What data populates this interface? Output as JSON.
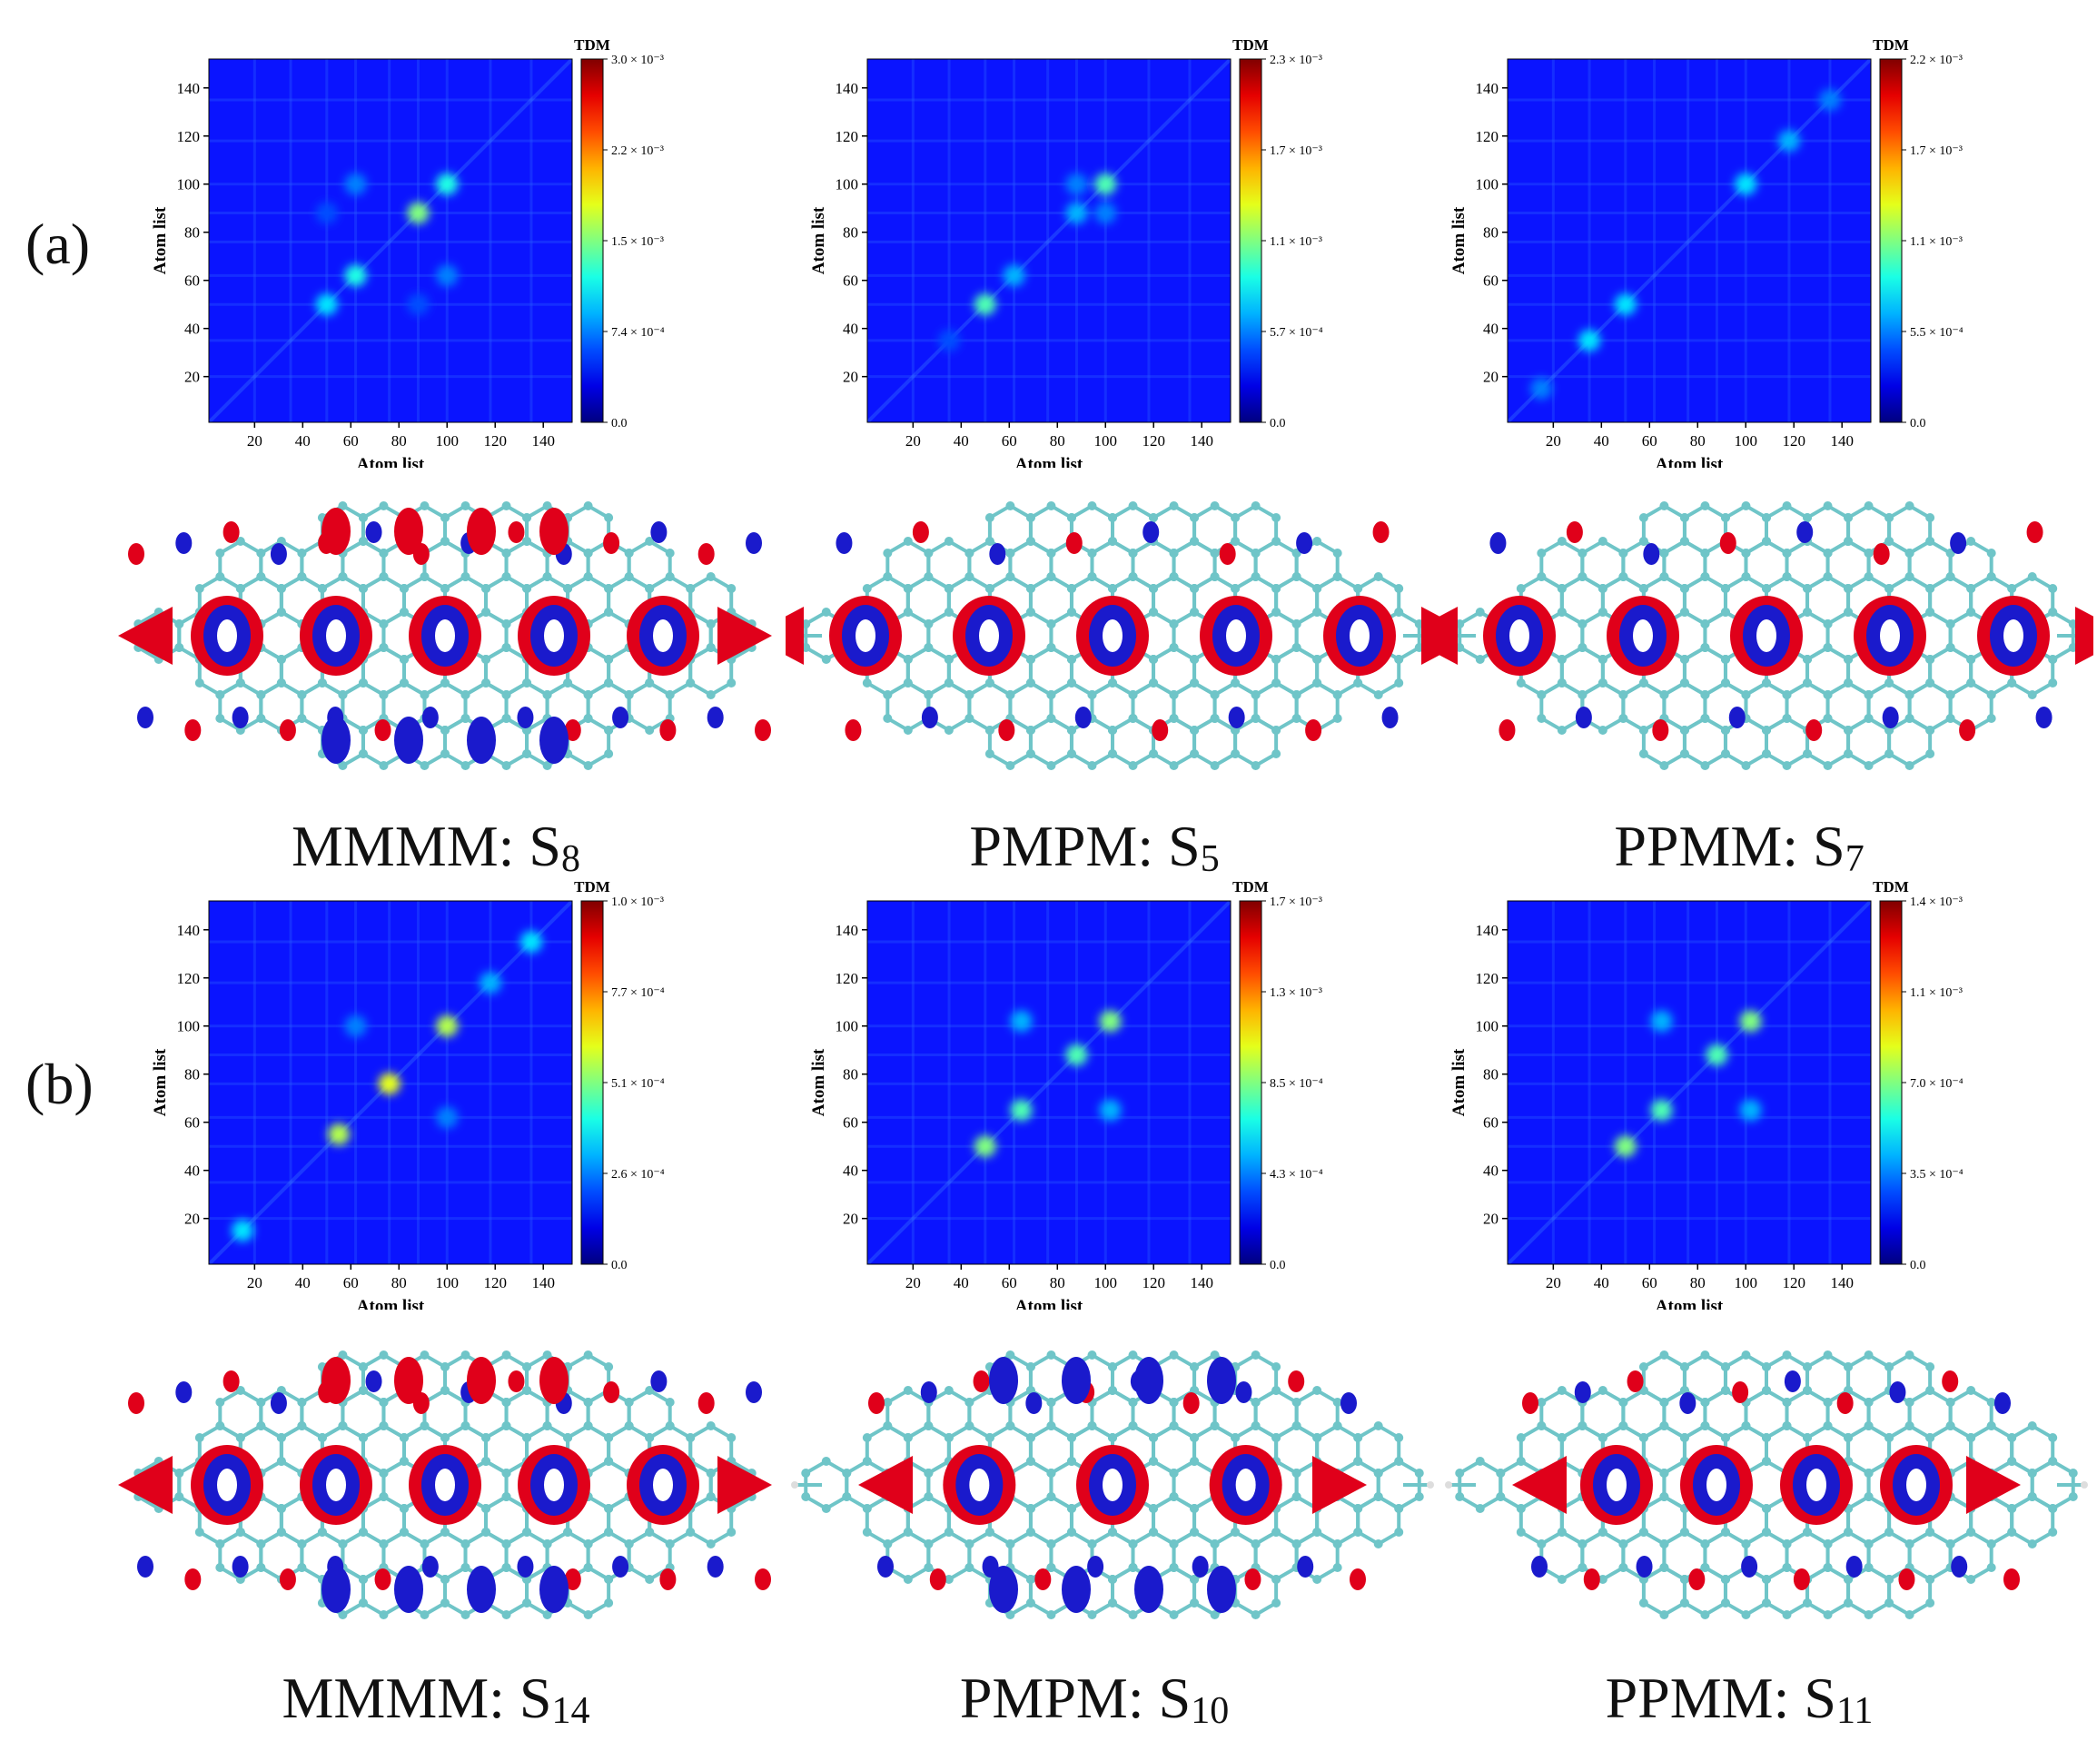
{
  "labels": {
    "a": "(a)",
    "b": "(b)"
  },
  "axis": {
    "x_label": "Atom list",
    "y_label": "Atom list",
    "x_ticks": [
      "20",
      "40",
      "60",
      "80",
      "100",
      "120",
      "140"
    ],
    "y_ticks": [
      "20",
      "40",
      "60",
      "80",
      "100",
      "120",
      "140"
    ],
    "colorbar_title": "TDM"
  },
  "colors": {
    "map_low": "#0000ff",
    "map_mid": "#00ff40",
    "map_high": "#ff0000",
    "atom": "#6fc5c8",
    "lobe_pos": "#e0001a",
    "lobe_neg": "#1a1acc"
  },
  "chart_data": [
    {
      "type": "heatmap",
      "id": "a1",
      "title": "TDM",
      "xlabel": "Atom list",
      "ylabel": "Atom list",
      "xlim": [
        1,
        152
      ],
      "ylim": [
        1,
        152
      ],
      "colorbar": {
        "max": "3.0 × 10⁻³",
        "ticks": [
          "3.0 × 10⁻³",
          "2.2 × 10⁻³",
          "1.5 × 10⁻³",
          "7.4 × 10⁻⁴",
          "0.0"
        ]
      },
      "hotspots": [
        {
          "x": 50,
          "y": 50,
          "v": 0.35
        },
        {
          "x": 62,
          "y": 62,
          "v": 0.4
        },
        {
          "x": 88,
          "y": 88,
          "v": 0.5
        },
        {
          "x": 100,
          "y": 100,
          "v": 0.4
        },
        {
          "x": 62,
          "y": 100,
          "v": 0.25
        },
        {
          "x": 100,
          "y": 62,
          "v": 0.25
        },
        {
          "x": 50,
          "y": 88,
          "v": 0.2
        },
        {
          "x": 88,
          "y": 50,
          "v": 0.2
        }
      ]
    },
    {
      "type": "heatmap",
      "id": "a2",
      "title": "TDM",
      "xlabel": "Atom list",
      "ylabel": "Atom list",
      "xlim": [
        1,
        152
      ],
      "ylim": [
        1,
        152
      ],
      "colorbar": {
        "max": "2.3 × 10⁻³",
        "ticks": [
          "2.3 × 10⁻³",
          "1.7 × 10⁻³",
          "1.1 × 10⁻³",
          "5.7 × 10⁻⁴",
          "0.0"
        ]
      },
      "hotspots": [
        {
          "x": 50,
          "y": 50,
          "v": 0.45
        },
        {
          "x": 100,
          "y": 100,
          "v": 0.45
        },
        {
          "x": 62,
          "y": 62,
          "v": 0.3
        },
        {
          "x": 88,
          "y": 88,
          "v": 0.3
        },
        {
          "x": 100,
          "y": 88,
          "v": 0.25
        },
        {
          "x": 88,
          "y": 100,
          "v": 0.25
        },
        {
          "x": 35,
          "y": 35,
          "v": 0.2
        }
      ]
    },
    {
      "type": "heatmap",
      "id": "a3",
      "title": "TDM",
      "xlabel": "Atom list",
      "ylabel": "Atom list",
      "xlim": [
        1,
        152
      ],
      "ylim": [
        1,
        152
      ],
      "colorbar": {
        "max": "2.2 × 10⁻³",
        "ticks": [
          "2.2 × 10⁻³",
          "1.7 × 10⁻³",
          "1.1 × 10⁻³",
          "5.5 × 10⁻⁴",
          "0.0"
        ]
      },
      "hotspots": [
        {
          "x": 35,
          "y": 35,
          "v": 0.35
        },
        {
          "x": 50,
          "y": 50,
          "v": 0.35
        },
        {
          "x": 100,
          "y": 100,
          "v": 0.35
        },
        {
          "x": 118,
          "y": 118,
          "v": 0.3
        },
        {
          "x": 15,
          "y": 15,
          "v": 0.25
        },
        {
          "x": 135,
          "y": 135,
          "v": 0.25
        }
      ]
    },
    {
      "type": "heatmap",
      "id": "b1",
      "title": "TDM",
      "xlabel": "Atom list",
      "ylabel": "Atom list",
      "xlim": [
        1,
        152
      ],
      "ylim": [
        1,
        152
      ],
      "colorbar": {
        "max": "1.0 × 10⁻³",
        "ticks": [
          "1.0 × 10⁻³",
          "7.7 × 10⁻⁴",
          "5.1 × 10⁻⁴",
          "2.6 × 10⁻⁴",
          "0.0"
        ]
      },
      "hotspots": [
        {
          "x": 55,
          "y": 55,
          "v": 0.55
        },
        {
          "x": 76,
          "y": 76,
          "v": 0.6
        },
        {
          "x": 100,
          "y": 100,
          "v": 0.55
        },
        {
          "x": 15,
          "y": 15,
          "v": 0.35
        },
        {
          "x": 135,
          "y": 135,
          "v": 0.35
        },
        {
          "x": 118,
          "y": 118,
          "v": 0.3
        },
        {
          "x": 62,
          "y": 100,
          "v": 0.25
        },
        {
          "x": 100,
          "y": 62,
          "v": 0.25
        }
      ]
    },
    {
      "type": "heatmap",
      "id": "b2",
      "title": "TDM",
      "xlabel": "Atom list",
      "ylabel": "Atom list",
      "xlim": [
        1,
        152
      ],
      "ylim": [
        1,
        152
      ],
      "colorbar": {
        "max": "1.7 × 10⁻³",
        "ticks": [
          "1.7 × 10⁻³",
          "1.3 × 10⁻³",
          "8.5 × 10⁻⁴",
          "4.3 × 10⁻⁴",
          "0.0"
        ]
      },
      "hotspots": [
        {
          "x": 50,
          "y": 50,
          "v": 0.5
        },
        {
          "x": 65,
          "y": 65,
          "v": 0.45
        },
        {
          "x": 88,
          "y": 88,
          "v": 0.45
        },
        {
          "x": 102,
          "y": 102,
          "v": 0.5
        },
        {
          "x": 65,
          "y": 102,
          "v": 0.3
        },
        {
          "x": 102,
          "y": 65,
          "v": 0.3
        }
      ]
    },
    {
      "type": "heatmap",
      "id": "b3",
      "title": "TDM",
      "xlabel": "Atom list",
      "ylabel": "Atom list",
      "xlim": [
        1,
        152
      ],
      "ylim": [
        1,
        152
      ],
      "colorbar": {
        "max": "1.4 × 10⁻³",
        "ticks": [
          "1.4 × 10⁻³",
          "1.1 × 10⁻³",
          "7.0 × 10⁻⁴",
          "3.5 × 10⁻⁴",
          "0.0"
        ]
      },
      "hotspots": [
        {
          "x": 50,
          "y": 50,
          "v": 0.5
        },
        {
          "x": 65,
          "y": 65,
          "v": 0.45
        },
        {
          "x": 88,
          "y": 88,
          "v": 0.45
        },
        {
          "x": 102,
          "y": 102,
          "v": 0.5
        },
        {
          "x": 65,
          "y": 102,
          "v": 0.3
        },
        {
          "x": 102,
          "y": 65,
          "v": 0.3
        }
      ]
    }
  ],
  "captions": [
    {
      "name": "MMMM",
      "state": "S",
      "index": "8"
    },
    {
      "name": "PMPM",
      "state": "S",
      "index": "5"
    },
    {
      "name": "PPMM",
      "state": "S",
      "index": "7"
    },
    {
      "name": "MMMM",
      "state": "S",
      "index": "14"
    },
    {
      "name": "PMPM",
      "state": "S",
      "index": "10"
    },
    {
      "name": "PPMM",
      "state": "S",
      "index": "11"
    }
  ]
}
